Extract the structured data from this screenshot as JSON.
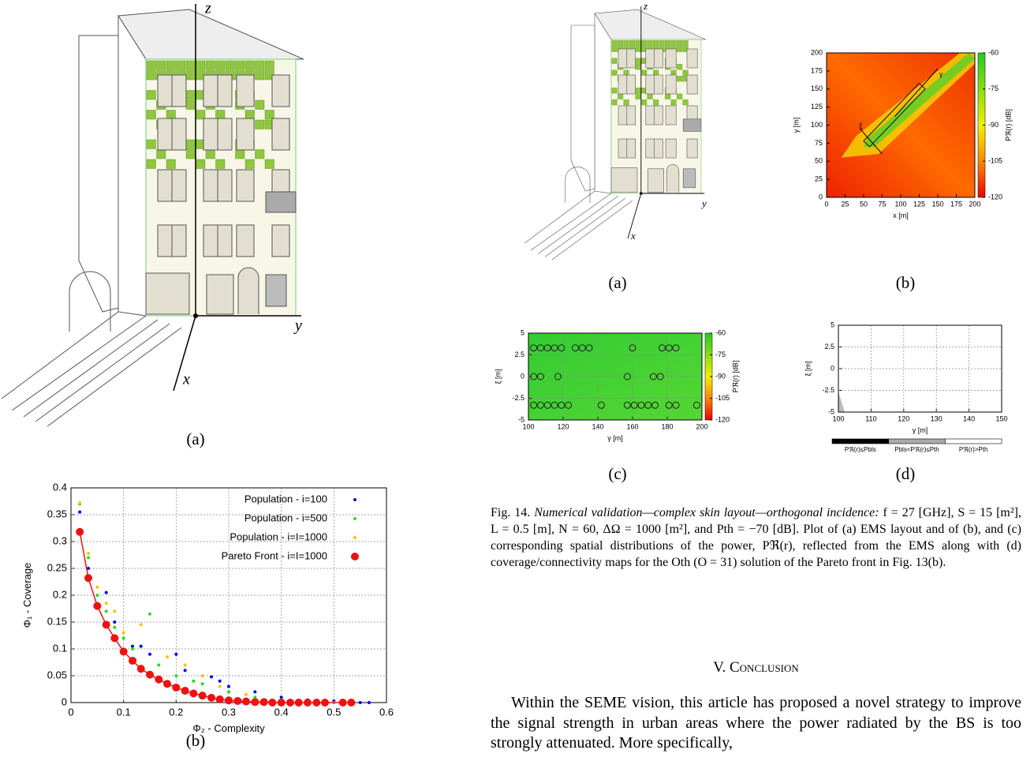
{
  "fig13": {
    "panel_a": "(a)",
    "panel_b": "(b)",
    "axis_labels": [
      "z",
      "y",
      "x"
    ]
  },
  "fig14": {
    "panel_labels": [
      "(a)",
      "(b)",
      "(c)",
      "(d)"
    ],
    "axis_labels": [
      "z",
      "y",
      "x"
    ],
    "caption": {
      "label": "Fig. 14.",
      "title": "Numerical validation—complex skin layout—orthogonal incidence:",
      "body": "f = 27 [GHz], S = 15 [m²], L = 0.5 [m], N = 60, ΔΩ = 1000 [m²], and Pth = −70 [dB]. Plot of (a) EMS layout and of (b), and (c) corresponding spatial distributions of the power, Pℜ(r), reflected from the EMS along with (d) coverage/connectivity maps for the Oth (O = 31) solution of the Pareto front in Fig. 13(b)."
    }
  },
  "section": {
    "heading": "V. Conclusion",
    "paragraph": "Within the SEME vision, this article has proposed a novel strategy to improve the signal strength in urban areas where the power radiated by the BS is too strongly attenuated. More specifically,"
  },
  "chart_data": [
    {
      "type": "scatter",
      "xlabel": "Φ₂ - Complexity",
      "ylabel": "Φ₁ - Coverage",
      "xlim": [
        0,
        0.6
      ],
      "ylim": [
        0,
        0.4
      ],
      "xticks": [
        0,
        0.1,
        0.2,
        0.3,
        0.4,
        0.5,
        0.6
      ],
      "yticks": [
        0,
        0.05,
        0.1,
        0.15,
        0.2,
        0.25,
        0.3,
        0.35,
        0.4
      ],
      "grid": true,
      "legend": "top-right",
      "series": [
        {
          "name": "Population - i=100",
          "color": "#0000ee",
          "size": 2,
          "x": [
            0.0167,
            0.033,
            0.067,
            0.083,
            0.117,
            0.133,
            0.15,
            0.2,
            0.217,
            0.267,
            0.283,
            0.3,
            0.35,
            0.4,
            0.45,
            0.5,
            0.55,
            0.567
          ],
          "values": [
            0.355,
            0.25,
            0.205,
            0.15,
            0.105,
            0.105,
            0.09,
            0.09,
            0.06,
            0.048,
            0.04,
            0.03,
            0.02,
            0.01,
            0.005,
            0.003,
            0,
            0
          ]
        },
        {
          "name": "Population - i=500",
          "color": "#22dd22",
          "size": 2,
          "x": [
            0.0167,
            0.033,
            0.05,
            0.067,
            0.083,
            0.1,
            0.117,
            0.15,
            0.167,
            0.2,
            0.233,
            0.25,
            0.3,
            0.35,
            0.4,
            0.45,
            0.5
          ],
          "values": [
            0.37,
            0.27,
            0.2,
            0.17,
            0.14,
            0.12,
            0.1,
            0.165,
            0.07,
            0.05,
            0.04,
            0.035,
            0.02,
            0.01,
            0.005,
            0,
            0
          ]
        },
        {
          "name": "Population - i=I=1000",
          "color": "#f5c400",
          "size": 2,
          "x": [
            0.0167,
            0.033,
            0.05,
            0.067,
            0.083,
            0.1,
            0.133,
            0.183,
            0.217,
            0.25,
            0.283,
            0.333,
            0.383,
            0.433,
            0.483,
            0.533
          ],
          "values": [
            0.372,
            0.278,
            0.215,
            0.185,
            0.17,
            0.13,
            0.145,
            0.085,
            0.07,
            0.05,
            0.03,
            0.015,
            0.005,
            0,
            0,
            0
          ]
        },
        {
          "name": "Pareto Front - i=I=1000",
          "color": "#ee1111",
          "size": 5,
          "connect": true,
          "x": [
            0.0167,
            0.033,
            0.05,
            0.067,
            0.083,
            0.1,
            0.117,
            0.133,
            0.15,
            0.167,
            0.183,
            0.2,
            0.217,
            0.233,
            0.25,
            0.267,
            0.283,
            0.3,
            0.317,
            0.333,
            0.35,
            0.367,
            0.383,
            0.4,
            0.417,
            0.433,
            0.45,
            0.467,
            0.483,
            0.517,
            0.533
          ],
          "values": [
            0.318,
            0.232,
            0.18,
            0.145,
            0.12,
            0.095,
            0.078,
            0.063,
            0.052,
            0.043,
            0.035,
            0.028,
            0.022,
            0.017,
            0.013,
            0.009,
            0.006,
            0.004,
            0.003,
            0.002,
            0.001,
            0.001,
            0,
            0,
            0,
            0,
            0,
            0,
            0,
            0,
            0
          ]
        }
      ]
    },
    {
      "type": "heatmap",
      "xlabel": "x [m]",
      "ylabel": "y [m]",
      "xlim": [
        0,
        200
      ],
      "ylim": [
        0,
        200
      ],
      "xticks": [
        0,
        25,
        50,
        75,
        100,
        125,
        150,
        175,
        200
      ],
      "yticks": [
        0,
        25,
        50,
        75,
        100,
        125,
        150,
        175,
        200
      ],
      "grid": false,
      "cblim": [
        -120,
        -60
      ],
      "cbticks": [
        -60,
        -75,
        -90,
        -105,
        -120
      ],
      "cblabel": "Pℜ(r) [dB]",
      "overlay": [
        "ξ",
        "γ"
      ]
    },
    {
      "type": "heatmap",
      "xlabel": "γ [m]",
      "ylabel": "ξ [m]",
      "xlim": [
        100,
        200
      ],
      "ylim": [
        -5,
        5
      ],
      "xticks": [
        100,
        120,
        140,
        160,
        180,
        200
      ],
      "yticks": [
        5,
        2.5,
        0,
        -2.5,
        -5
      ],
      "grid": true,
      "cblim": [
        -120,
        -60
      ],
      "cbticks": [
        -60,
        -75,
        -90,
        -105,
        -120
      ],
      "cblabel": "Pℜ(r) [dB]",
      "series": [
        {
          "color": "#222222",
          "x": [
            103,
            107,
            111,
            115,
            119,
            127,
            131,
            135,
            160,
            177,
            181,
            185,
            103,
            107,
            117,
            157,
            172,
            176,
            103,
            107,
            111,
            115,
            119,
            123,
            142,
            157,
            161,
            165,
            169,
            173,
            181,
            185,
            197
          ],
          "values": [
            3.3,
            3.3,
            3.3,
            3.3,
            3.3,
            3.3,
            3.3,
            3.3,
            3.3,
            3.3,
            3.3,
            3.3,
            0,
            0,
            0,
            0,
            0,
            0,
            -3.3,
            -3.3,
            -3.3,
            -3.3,
            -3.3,
            -3.3,
            -3.3,
            -3.3,
            -3.3,
            -3.3,
            -3.3,
            -3.3,
            -3.3,
            -3.3,
            -3.3
          ]
        }
      ]
    },
    {
      "type": "map",
      "xlabel": "γ [m]",
      "ylabel": "ξ [m]",
      "xlim": [
        100,
        150
      ],
      "ylim": [
        -5,
        5
      ],
      "xticks": [
        100,
        110,
        120,
        130,
        140,
        150
      ],
      "yticks": [
        5,
        2.5,
        0,
        -2.5,
        -5
      ],
      "grid": true,
      "legend_items": [
        "Pℜ(r)≤Pbls",
        "Pbls<Pℜ(r)≤Pth",
        "Pℜ(r)>Pth"
      ],
      "legend_colors": [
        "#000000",
        "#aaaaaa",
        "#ffffff"
      ]
    }
  ]
}
